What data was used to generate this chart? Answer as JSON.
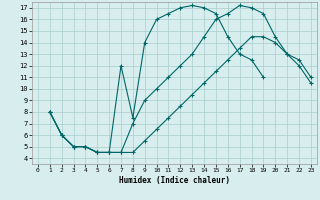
{
  "title": "",
  "xlabel": "Humidex (Indice chaleur)",
  "bg_color": "#d8eeee",
  "grid_color": "#aacccc",
  "line_color": "#006666",
  "xlim": [
    -0.5,
    23.5
  ],
  "ylim": [
    3.5,
    17.5
  ],
  "xticks": [
    0,
    1,
    2,
    3,
    4,
    5,
    6,
    7,
    8,
    9,
    10,
    11,
    12,
    13,
    14,
    15,
    16,
    17,
    18,
    19,
    20,
    21,
    22,
    23
  ],
  "yticks": [
    4,
    5,
    6,
    7,
    8,
    9,
    10,
    11,
    12,
    13,
    14,
    15,
    16,
    17
  ],
  "line1_x": [
    1,
    2,
    3,
    4,
    5,
    6,
    7,
    8,
    9,
    10,
    11,
    12,
    13,
    14,
    15,
    16,
    17,
    18,
    19
  ],
  "line1_y": [
    8,
    6,
    5,
    5,
    4.5,
    4.5,
    12,
    7.5,
    14,
    16,
    16.5,
    17,
    17.2,
    17,
    16.5,
    14.5,
    13,
    12.5,
    11
  ],
  "line2_x": [
    1,
    2,
    3,
    4,
    5,
    6,
    7,
    8,
    9,
    10,
    11,
    12,
    13,
    14,
    15,
    16,
    17,
    18,
    19,
    20,
    21,
    22,
    23
  ],
  "line2_y": [
    8,
    6,
    5,
    5,
    4.5,
    4.5,
    4.5,
    7,
    9,
    10,
    11,
    12,
    13,
    14.5,
    16,
    16.5,
    17.2,
    17,
    16.5,
    14.5,
    13,
    12.5,
    11
  ],
  "line3_x": [
    1,
    2,
    3,
    4,
    5,
    6,
    7,
    8,
    9,
    10,
    11,
    12,
    13,
    14,
    15,
    16,
    17,
    18,
    19,
    20,
    21,
    22,
    23
  ],
  "line3_y": [
    8,
    6,
    5,
    5,
    4.5,
    4.5,
    4.5,
    4.5,
    5.5,
    6.5,
    7.5,
    8.5,
    9.5,
    10.5,
    11.5,
    12.5,
    13.5,
    14.5,
    14.5,
    14,
    13,
    12,
    10.5
  ]
}
